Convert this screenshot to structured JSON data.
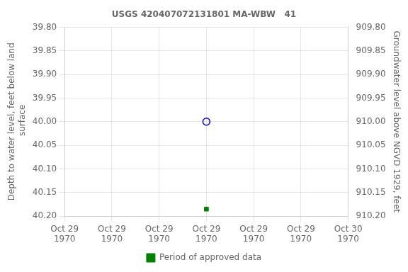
{
  "chart_data": {
    "type": "scatter",
    "title": "USGS 420407072131801 MA-WBW   41",
    "x_label_note_free": true,
    "ylabel": "Depth to water level, feet below land\n surface",
    "y2label": "Groundwater level above NGVD 1929, feet",
    "x": [
      0.5
    ],
    "series": [
      {
        "color": "#0000cc",
        "marker": "open_circle",
        "values": [
          40.0
        ]
      },
      {
        "name": "Period of approved data",
        "color": "#008000",
        "marker": "square",
        "values": [
          40.185
        ]
      }
    ],
    "xlim": [
      0,
      1
    ],
    "xticks": [
      {
        "value": 0,
        "label": "Oct 29\n1970"
      },
      {
        "value": 0.16666666666666666,
        "label": "Oct 29\n1970"
      },
      {
        "value": 0.3333333333333333,
        "label": "Oct 29\n1970"
      },
      {
        "value": 0.5,
        "label": "Oct 29\n1970"
      },
      {
        "value": 0.6666666666666666,
        "label": "Oct 29\n1970"
      },
      {
        "value": 0.8333333333333334,
        "label": "Oct 29\n1970"
      },
      {
        "value": 1,
        "label": "Oct 30\n1970"
      }
    ],
    "ylim": [
      40.2,
      39.8
    ],
    "yticks": [
      {
        "value": 39.8,
        "label": "39.80"
      },
      {
        "value": 39.85,
        "label": "39.85"
      },
      {
        "value": 39.9,
        "label": "39.90"
      },
      {
        "value": 39.95,
        "label": "39.95"
      },
      {
        "value": 40.0,
        "label": "40.00"
      },
      {
        "value": 40.05,
        "label": "40.05"
      },
      {
        "value": 40.1,
        "label": "40.10"
      },
      {
        "value": 40.15,
        "label": "40.15"
      },
      {
        "value": 40.2,
        "label": "40.20"
      }
    ],
    "y2lim": [
      910.2,
      909.8
    ],
    "y2ticks": [
      {
        "value": 910.2,
        "label": "910.20"
      },
      {
        "value": 910.15,
        "label": "910.15"
      },
      {
        "value": 910.1,
        "label": "910.10"
      },
      {
        "value": 910.05,
        "label": "910.05"
      },
      {
        "value": 910.0,
        "label": "910.00"
      },
      {
        "value": 909.95,
        "label": "909.95"
      },
      {
        "value": 909.9,
        "label": "909.90"
      },
      {
        "value": 909.85,
        "label": "909.85"
      },
      {
        "value": 909.8,
        "label": "909.80"
      }
    ],
    "grid": true,
    "legend": "bottom"
  }
}
